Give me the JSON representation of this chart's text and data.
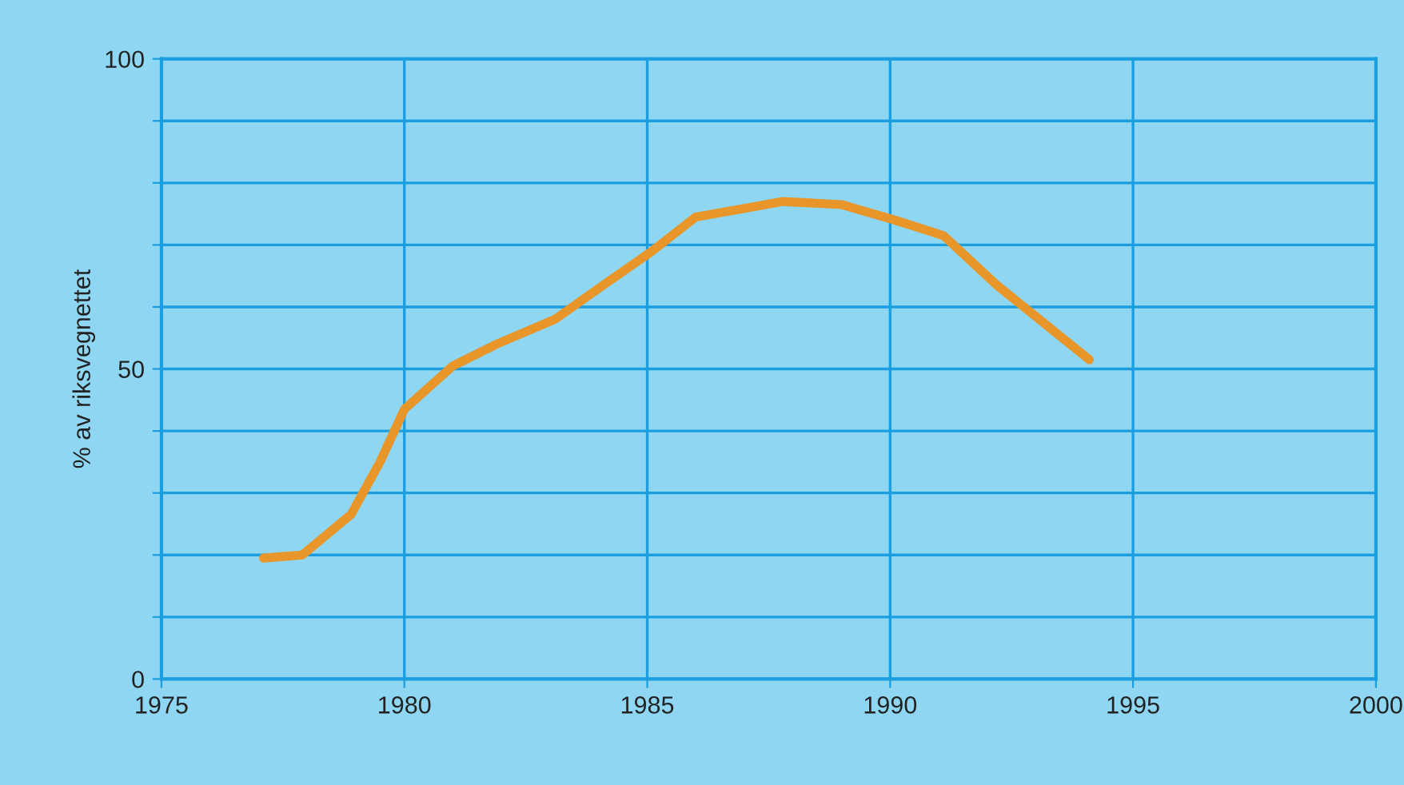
{
  "chart_data": {
    "type": "line",
    "ylabel": "% av riksvegnettet",
    "x": [
      1977.1,
      1977.9,
      1978.9,
      1979.5,
      1980,
      1981,
      1981.9,
      1983.1,
      1984,
      1985.1,
      1986,
      1987.8,
      1989,
      1990.1,
      1991.1,
      1992.2,
      1994.1
    ],
    "series": [
      {
        "color": "#e8962a",
        "values": [
          19.5,
          20,
          26.5,
          35,
          43.5,
          50.5,
          54,
          58,
          63,
          69,
          74.5,
          77,
          76.5,
          74,
          71.5,
          63.5,
          51.5
        ]
      }
    ],
    "xlim": [
      1975,
      2000
    ],
    "xticks": [
      1975,
      1980,
      1985,
      1990,
      1995,
      2000
    ],
    "ylim": [
      0,
      100
    ],
    "yticks": [
      0,
      {
        "value": 10,
        "label": null
      },
      {
        "value": 20,
        "label": null
      },
      {
        "value": 30,
        "label": null
      },
      {
        "value": 40,
        "label": null
      },
      50,
      {
        "value": 60,
        "label": null
      },
      {
        "value": 70,
        "label": null
      },
      {
        "value": 80,
        "label": null
      },
      {
        "value": 90,
        "label": null
      },
      100
    ],
    "grid": true,
    "legend": false,
    "marker": "none",
    "line_style": "solid"
  }
}
